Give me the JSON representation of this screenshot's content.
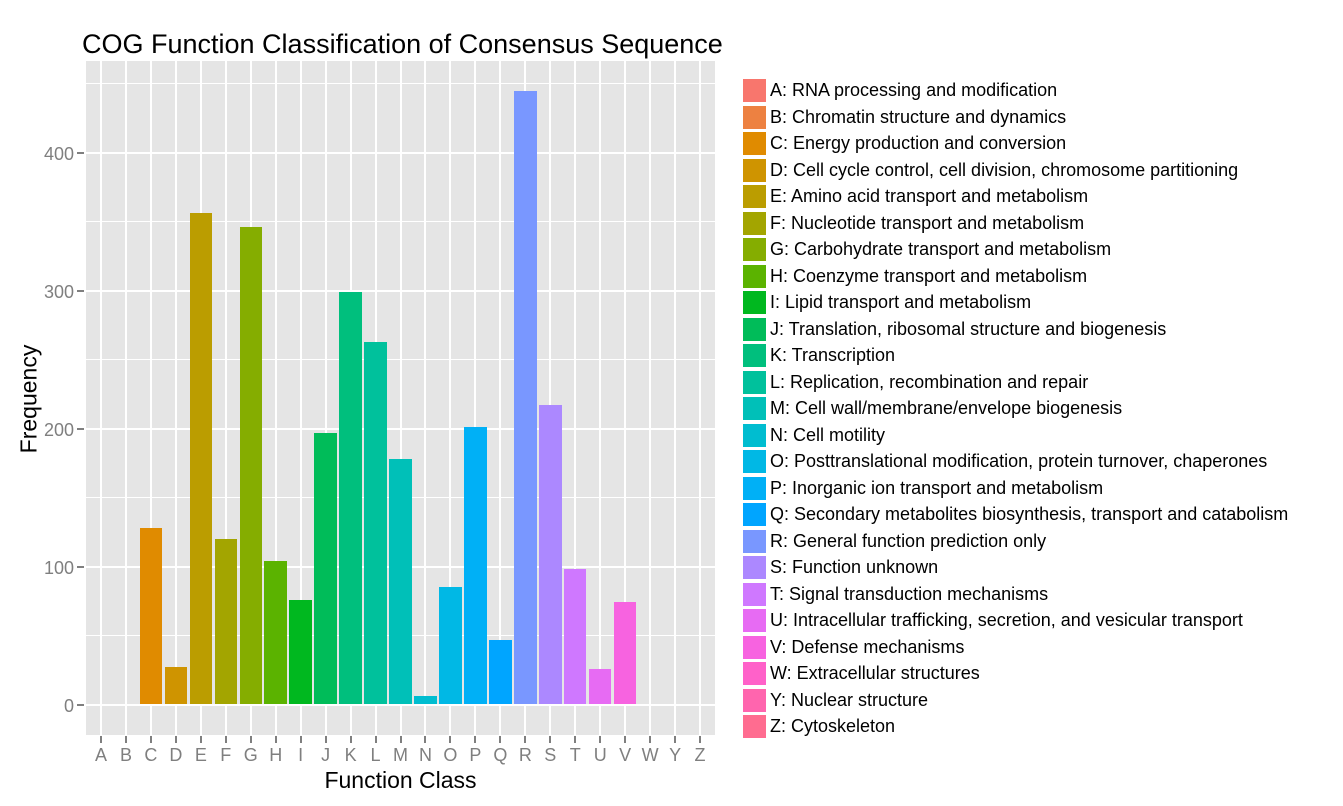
{
  "title": "COG Function Classification of Consensus Sequence",
  "chart_data": {
    "type": "bar",
    "title": "COG Function Classification of Consensus Sequence",
    "xlabel": "Function Class",
    "ylabel": "Frequency",
    "ylim": [
      0,
      466
    ],
    "yticks": [
      0,
      100,
      200,
      300,
      400
    ],
    "yminor": [
      50,
      150,
      250,
      350,
      450
    ],
    "grid": "white on gray panel",
    "legend_position": "right",
    "panel_bg": "#E5E5E5",
    "grid_color": "#FFFFFF",
    "axis_text_color": "#7F7F7F",
    "categories": [
      {
        "letter": "A",
        "value": 0,
        "color": "#F8766D",
        "legend": "A: RNA processing and modification"
      },
      {
        "letter": "B",
        "value": 0,
        "color": "#ED8141",
        "legend": "B: Chromatin structure and dynamics"
      },
      {
        "letter": "C",
        "value": 128,
        "color": "#E08B00",
        "legend": "C: Energy production and conversion"
      },
      {
        "letter": "D",
        "value": 27,
        "color": "#CF9400",
        "legend": "D: Cell cycle control, cell division, chromosome partitioning"
      },
      {
        "letter": "E",
        "value": 356,
        "color": "#BB9D00",
        "legend": "E: Amino acid transport and metabolism"
      },
      {
        "letter": "F",
        "value": 120,
        "color": "#A3A500",
        "legend": "F: Nucleotide transport and metabolism"
      },
      {
        "letter": "G",
        "value": 346,
        "color": "#85AD00",
        "legend": "G: Carbohydrate transport and metabolism"
      },
      {
        "letter": "H",
        "value": 104,
        "color": "#5BB300",
        "legend": "H: Coenzyme transport and metabolism"
      },
      {
        "letter": "I",
        "value": 76,
        "color": "#00B81F",
        "legend": "I: Lipid transport and metabolism"
      },
      {
        "letter": "J",
        "value": 197,
        "color": "#00BC59",
        "legend": "J: Translation, ribosomal structure and biogenesis"
      },
      {
        "letter": "K",
        "value": 299,
        "color": "#00BF7D",
        "legend": "K: Transcription"
      },
      {
        "letter": "L",
        "value": 263,
        "color": "#00C19C",
        "legend": "L: Replication, recombination and repair"
      },
      {
        "letter": "M",
        "value": 178,
        "color": "#00C0B8",
        "legend": "M: Cell wall/membrane/envelope biogenesis"
      },
      {
        "letter": "N",
        "value": 6,
        "color": "#00BDD0",
        "legend": "N: Cell motility"
      },
      {
        "letter": "O",
        "value": 85,
        "color": "#00B8E5",
        "legend": "O: Posttranslational modification, protein turnover, chaperones"
      },
      {
        "letter": "P",
        "value": 201,
        "color": "#00B0F6",
        "legend": "P: Inorganic ion transport and metabolism"
      },
      {
        "letter": "Q",
        "value": 47,
        "color": "#00A5FF",
        "legend": "Q: Secondary metabolites biosynthesis, transport and catabolism"
      },
      {
        "letter": "R",
        "value": 445,
        "color": "#7997FF",
        "legend": "R: General function prediction only"
      },
      {
        "letter": "S",
        "value": 217,
        "color": "#AC88FF",
        "legend": "S: Function unknown"
      },
      {
        "letter": "T",
        "value": 98,
        "color": "#CF78FF",
        "legend": "T: Signal transduction mechanisms"
      },
      {
        "letter": "U",
        "value": 26,
        "color": "#E76BF3",
        "legend": "U: Intracellular trafficking, secretion, and vesicular transport"
      },
      {
        "letter": "V",
        "value": 74,
        "color": "#F763E0",
        "legend": "V: Defense mechanisms"
      },
      {
        "letter": "W",
        "value": 0,
        "color": "#FF61C9",
        "legend": "W: Extracellular structures"
      },
      {
        "letter": "Y",
        "value": 0,
        "color": "#FF65AE",
        "legend": "Y: Nuclear structure"
      },
      {
        "letter": "Z",
        "value": 0,
        "color": "#FF6C90",
        "legend": "Z: Cytoskeleton"
      }
    ]
  }
}
